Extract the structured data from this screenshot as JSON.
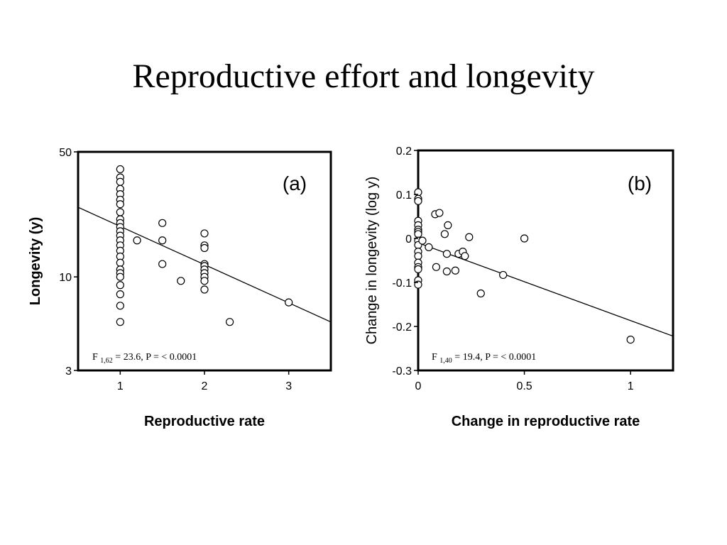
{
  "title": "Reproductive effort and longevity",
  "chart_data": [
    {
      "type": "scatter",
      "panel_label": "(a)",
      "xlabel": "Reproductive rate",
      "ylabel": "Longevity (y)",
      "xlim": [
        0.5,
        3.5
      ],
      "ylim": [
        3,
        50
      ],
      "y_scale": "log",
      "x_ticks": [
        {
          "value": 1,
          "label": "1"
        },
        {
          "value": 2,
          "label": "2"
        },
        {
          "value": 3,
          "label": "3"
        }
      ],
      "y_ticks": [
        {
          "value": 50,
          "label": "50"
        },
        {
          "value": 10,
          "label": "10"
        },
        {
          "value": 3,
          "label": "3"
        }
      ],
      "stat": {
        "prefix": "F ",
        "sub": "1,62",
        "suffix": " = 23.6, P = < 0.0001"
      },
      "fit_line": [
        [
          0.5,
          24.5
        ],
        [
          3.5,
          5.6
        ]
      ],
      "points": [
        [
          1,
          40
        ],
        [
          1,
          36
        ],
        [
          1,
          34
        ],
        [
          1,
          31
        ],
        [
          1,
          29
        ],
        [
          1,
          27
        ],
        [
          1,
          25.5
        ],
        [
          1,
          23
        ],
        [
          1,
          21
        ],
        [
          1,
          20
        ],
        [
          1,
          19
        ],
        [
          1,
          18
        ],
        [
          1,
          17
        ],
        [
          1,
          16
        ],
        [
          1,
          15
        ],
        [
          1,
          14
        ],
        [
          1,
          13
        ],
        [
          1,
          12
        ],
        [
          1,
          11
        ],
        [
          1,
          10.5
        ],
        [
          1,
          10
        ],
        [
          1,
          9
        ],
        [
          1,
          8
        ],
        [
          1,
          6.9
        ],
        [
          1,
          5.6
        ],
        [
          1.2,
          16
        ],
        [
          1.5,
          20
        ],
        [
          1.5,
          16
        ],
        [
          1.5,
          11.8
        ],
        [
          1.72,
          9.5
        ],
        [
          2,
          17.5
        ],
        [
          2,
          15
        ],
        [
          2,
          14.5
        ],
        [
          2,
          11.8
        ],
        [
          2,
          11.5
        ],
        [
          2,
          11
        ],
        [
          2,
          10.5
        ],
        [
          2,
          10
        ],
        [
          2,
          9.5
        ],
        [
          2,
          8.5
        ],
        [
          2.3,
          5.6
        ],
        [
          3,
          7.2
        ]
      ]
    },
    {
      "type": "scatter",
      "panel_label": "(b)",
      "xlabel": "Change in reproductive rate",
      "ylabel": "Change in longevity (log y)",
      "xlim": [
        0,
        1.2
      ],
      "ylim": [
        -0.3,
        0.2
      ],
      "x_ticks": [
        {
          "value": 0,
          "label": "0"
        },
        {
          "value": 0.5,
          "label": "0.5"
        },
        {
          "value": 1,
          "label": "1"
        }
      ],
      "y_ticks": [
        {
          "value": 0.2,
          "label": "0.2"
        },
        {
          "value": 0.1,
          "label": "0.1"
        },
        {
          "value": 0,
          "label": "0"
        },
        {
          "value": -0.1,
          "label": "-0.1"
        },
        {
          "value": -0.2,
          "label": "-0.2"
        },
        {
          "value": -0.3,
          "label": "-0.3"
        }
      ],
      "stat": {
        "prefix": "F ",
        "sub": "1,40",
        "suffix": " = 19.4, P = < 0.0001"
      },
      "fit_line": [
        [
          0,
          -0.01
        ],
        [
          1.2,
          -0.222
        ]
      ],
      "points": [
        [
          0,
          0.105
        ],
        [
          0,
          0.09
        ],
        [
          0,
          0.085
        ],
        [
          0,
          0.04
        ],
        [
          0,
          0.03
        ],
        [
          0,
          0.02
        ],
        [
          0,
          0.015
        ],
        [
          0,
          0.01
        ],
        [
          0,
          -0.005
        ],
        [
          0,
          -0.015
        ],
        [
          0,
          -0.03
        ],
        [
          0,
          -0.04
        ],
        [
          0,
          -0.055
        ],
        [
          0,
          -0.065
        ],
        [
          0,
          -0.07
        ],
        [
          0,
          -0.095
        ],
        [
          0,
          -0.105
        ],
        [
          0.02,
          -0.005
        ],
        [
          0.05,
          -0.02
        ],
        [
          0.08,
          0.055
        ],
        [
          0.1,
          0.058
        ],
        [
          0.085,
          -0.065
        ],
        [
          0.125,
          0.01
        ],
        [
          0.14,
          0.03
        ],
        [
          0.135,
          -0.035
        ],
        [
          0.135,
          -0.075
        ],
        [
          0.175,
          -0.073
        ],
        [
          0.19,
          -0.035
        ],
        [
          0.21,
          -0.03
        ],
        [
          0.22,
          -0.04
        ],
        [
          0.24,
          0.003
        ],
        [
          0.295,
          -0.125
        ],
        [
          0.4,
          -0.083
        ],
        [
          0.5,
          0
        ],
        [
          1,
          -0.23
        ]
      ]
    }
  ]
}
